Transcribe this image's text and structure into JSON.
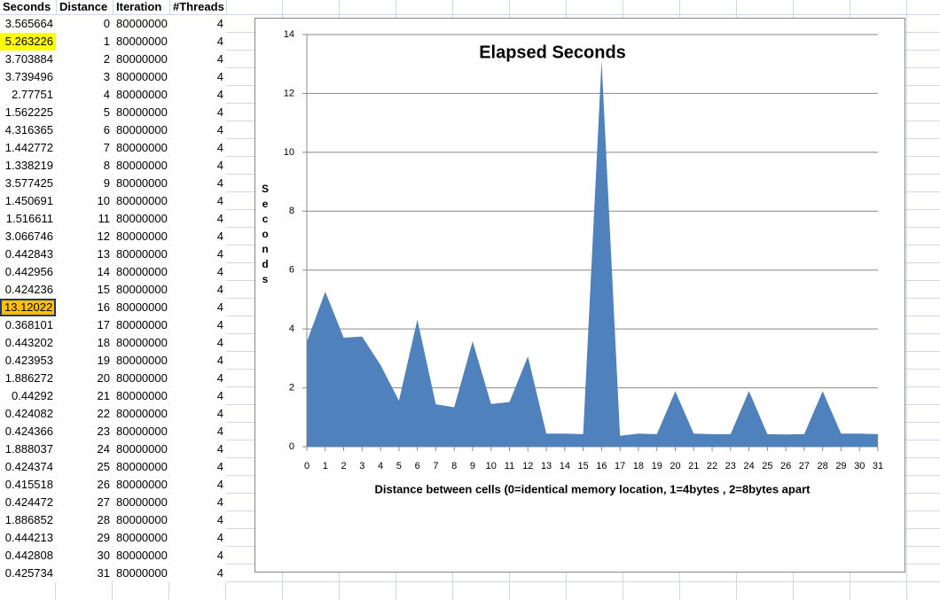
{
  "table": {
    "header": [
      "Seconds",
      "Distance",
      "Iteration",
      "#Threads"
    ],
    "rows": [
      [
        3.565664,
        0,
        80000000,
        4
      ],
      [
        5.263226,
        1,
        80000000,
        4
      ],
      [
        3.703884,
        2,
        80000000,
        4
      ],
      [
        3.739496,
        3,
        80000000,
        4
      ],
      [
        2.77751,
        4,
        80000000,
        4
      ],
      [
        1.562225,
        5,
        80000000,
        4
      ],
      [
        4.316365,
        6,
        80000000,
        4
      ],
      [
        1.442772,
        7,
        80000000,
        4
      ],
      [
        1.338219,
        8,
        80000000,
        4
      ],
      [
        3.577425,
        9,
        80000000,
        4
      ],
      [
        1.450691,
        10,
        80000000,
        4
      ],
      [
        1.516611,
        11,
        80000000,
        4
      ],
      [
        3.066746,
        12,
        80000000,
        4
      ],
      [
        0.442843,
        13,
        80000000,
        4
      ],
      [
        0.442956,
        14,
        80000000,
        4
      ],
      [
        0.424236,
        15,
        80000000,
        4
      ],
      [
        13.12022,
        16,
        80000000,
        4
      ],
      [
        0.368101,
        17,
        80000000,
        4
      ],
      [
        0.443202,
        18,
        80000000,
        4
      ],
      [
        0.423953,
        19,
        80000000,
        4
      ],
      [
        1.886272,
        20,
        80000000,
        4
      ],
      [
        0.44292,
        21,
        80000000,
        4
      ],
      [
        0.424082,
        22,
        80000000,
        4
      ],
      [
        0.424366,
        23,
        80000000,
        4
      ],
      [
        1.888037,
        24,
        80000000,
        4
      ],
      [
        0.424374,
        25,
        80000000,
        4
      ],
      [
        0.415518,
        26,
        80000000,
        4
      ],
      [
        0.424472,
        27,
        80000000,
        4
      ],
      [
        1.886852,
        28,
        80000000,
        4
      ],
      [
        0.444213,
        29,
        80000000,
        4
      ],
      [
        0.442808,
        30,
        80000000,
        4
      ],
      [
        0.425734,
        31,
        80000000,
        4
      ]
    ]
  },
  "chart_data": {
    "type": "area",
    "title": "Elapsed Seconds",
    "y_label": "Seconds",
    "x_label": "Distance between  cells   (0=identical memory location, 1=4bytes , 2=8bytes  apart",
    "categories": [
      "0",
      "1",
      "2",
      "3",
      "4",
      "5",
      "6",
      "7",
      "8",
      "9",
      "10",
      "11",
      "12",
      "13",
      "14",
      "15",
      "16",
      "17",
      "18",
      "19",
      "20",
      "21",
      "22",
      "23",
      "24",
      "25",
      "26",
      "27",
      "28",
      "29",
      "30",
      "31"
    ],
    "values": [
      3.565664,
      5.263226,
      3.703884,
      3.739496,
      2.77751,
      1.562225,
      4.316365,
      1.442772,
      1.338219,
      3.577425,
      1.450691,
      1.516611,
      3.066746,
      0.442843,
      0.442956,
      0.424236,
      13.12022,
      0.368101,
      0.443202,
      0.423953,
      1.886272,
      0.44292,
      0.424082,
      0.424366,
      1.888037,
      0.424374,
      0.415518,
      0.424472,
      1.886852,
      0.444213,
      0.442808,
      0.425734
    ],
    "color": "#4f81bd",
    "ylim": [
      0,
      14
    ],
    "yticks": [
      0,
      2,
      4,
      6,
      8,
      10,
      12,
      14
    ],
    "grid": true
  }
}
